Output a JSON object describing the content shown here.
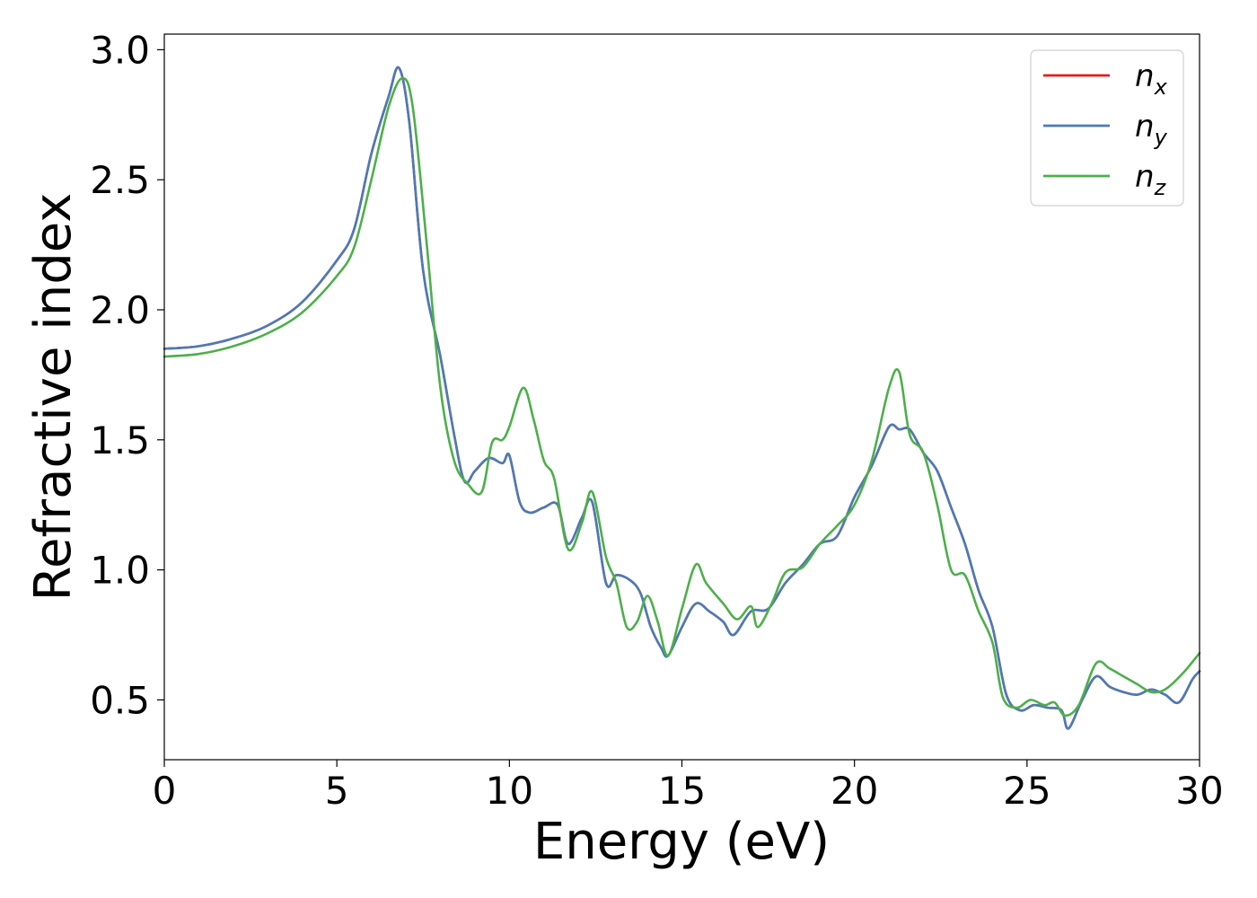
{
  "chart_data": {
    "type": "line",
    "title": "",
    "xlabel": "Energy (eV)",
    "ylabel": "Refractive index",
    "xlim": [
      0,
      30
    ],
    "ylim": [
      0.27,
      3.06
    ],
    "xticks": [
      0,
      5,
      10,
      15,
      20,
      25,
      30
    ],
    "yticks": [
      0.5,
      1.0,
      1.5,
      2.0,
      2.5,
      3.0
    ],
    "xtick_labels": [
      "0",
      "5",
      "10",
      "15",
      "20",
      "25",
      "30"
    ],
    "ytick_labels": [
      "0.5",
      "1.0",
      "1.5",
      "2.0",
      "2.5",
      "3.0"
    ],
    "grid": false,
    "legend_position": "top-right",
    "series": [
      {
        "name": "n_x",
        "label_main": "n",
        "label_sub": "x",
        "color": "#e41a1c",
        "x": [
          0,
          1,
          2,
          3,
          4,
          5,
          5.5,
          6,
          6.5,
          6.8,
          7.1,
          7.5,
          8,
          8.4,
          8.7,
          9,
          9.4,
          9.8,
          10,
          10.3,
          10.6,
          11,
          11.4,
          11.7,
          12.1,
          12.4,
          12.8,
          13.1,
          13.5,
          13.8,
          14.1,
          14.4,
          14.6,
          15,
          15.4,
          15.8,
          16.2,
          16.5,
          17,
          17.5,
          18,
          18.5,
          19,
          19.5,
          20,
          20.5,
          21,
          21.3,
          21.6,
          22,
          22.4,
          22.8,
          23.2,
          23.6,
          24,
          24.4,
          24.8,
          25.2,
          25.6,
          26,
          26.2,
          26.6,
          27,
          27.4,
          27.8,
          28.2,
          28.6,
          29,
          29.4,
          29.8,
          30
        ],
        "y": [
          1.85,
          1.86,
          1.89,
          1.94,
          2.03,
          2.19,
          2.31,
          2.6,
          2.82,
          2.93,
          2.72,
          2.15,
          1.82,
          1.52,
          1.34,
          1.38,
          1.43,
          1.41,
          1.44,
          1.26,
          1.22,
          1.24,
          1.25,
          1.1,
          1.2,
          1.26,
          0.95,
          0.98,
          0.96,
          0.91,
          0.78,
          0.7,
          0.67,
          0.78,
          0.87,
          0.84,
          0.8,
          0.75,
          0.84,
          0.85,
          0.95,
          1.02,
          1.1,
          1.13,
          1.28,
          1.4,
          1.55,
          1.54,
          1.54,
          1.45,
          1.38,
          1.24,
          1.1,
          0.92,
          0.78,
          0.52,
          0.46,
          0.48,
          0.47,
          0.46,
          0.39,
          0.5,
          0.59,
          0.55,
          0.53,
          0.52,
          0.54,
          0.52,
          0.49,
          0.58,
          0.61
        ]
      },
      {
        "name": "n_y",
        "label_main": "n",
        "label_sub": "y",
        "color": "#4a7bb7",
        "x": [
          0,
          1,
          2,
          3,
          4,
          5,
          5.5,
          6,
          6.5,
          6.8,
          7.1,
          7.5,
          8,
          8.4,
          8.7,
          9,
          9.4,
          9.8,
          10,
          10.3,
          10.6,
          11,
          11.4,
          11.7,
          12.1,
          12.4,
          12.8,
          13.1,
          13.5,
          13.8,
          14.1,
          14.4,
          14.6,
          15,
          15.4,
          15.8,
          16.2,
          16.5,
          17,
          17.5,
          18,
          18.5,
          19,
          19.5,
          20,
          20.5,
          21,
          21.3,
          21.6,
          22,
          22.4,
          22.8,
          23.2,
          23.6,
          24,
          24.4,
          24.8,
          25.2,
          25.6,
          26,
          26.2,
          26.6,
          27,
          27.4,
          27.8,
          28.2,
          28.6,
          29,
          29.4,
          29.8,
          30
        ],
        "y": [
          1.85,
          1.86,
          1.89,
          1.94,
          2.03,
          2.19,
          2.31,
          2.6,
          2.82,
          2.93,
          2.72,
          2.15,
          1.82,
          1.52,
          1.34,
          1.38,
          1.43,
          1.41,
          1.44,
          1.26,
          1.22,
          1.24,
          1.25,
          1.1,
          1.2,
          1.26,
          0.95,
          0.98,
          0.96,
          0.91,
          0.78,
          0.7,
          0.67,
          0.78,
          0.87,
          0.84,
          0.8,
          0.75,
          0.84,
          0.85,
          0.95,
          1.02,
          1.1,
          1.13,
          1.28,
          1.4,
          1.55,
          1.54,
          1.54,
          1.45,
          1.38,
          1.24,
          1.1,
          0.92,
          0.78,
          0.52,
          0.46,
          0.48,
          0.47,
          0.46,
          0.39,
          0.5,
          0.59,
          0.55,
          0.53,
          0.52,
          0.54,
          0.52,
          0.49,
          0.58,
          0.61
        ]
      },
      {
        "name": "n_z",
        "label_main": "n",
        "label_sub": "z",
        "color": "#4daf4a",
        "x": [
          0,
          1,
          2,
          3,
          4,
          5,
          5.5,
          6,
          6.5,
          6.9,
          7.2,
          7.6,
          8,
          8.4,
          8.8,
          9.2,
          9.5,
          9.8,
          10,
          10.4,
          10.7,
          11,
          11.3,
          11.7,
          12.1,
          12.4,
          12.8,
          13.1,
          13.4,
          13.7,
          14,
          14.3,
          14.6,
          15,
          15.4,
          15.7,
          16.2,
          16.6,
          17,
          17.2,
          17.6,
          18,
          18.5,
          19,
          19.5,
          20,
          20.5,
          21,
          21.3,
          21.6,
          22,
          22.4,
          22.8,
          23.2,
          23.6,
          24,
          24.3,
          24.7,
          25.1,
          25.5,
          25.8,
          26.1,
          26.5,
          27,
          27.4,
          27.8,
          28.2,
          28.6,
          29,
          29.5,
          30
        ],
        "y": [
          1.82,
          1.83,
          1.86,
          1.91,
          1.99,
          2.13,
          2.24,
          2.5,
          2.78,
          2.89,
          2.78,
          2.26,
          1.7,
          1.42,
          1.33,
          1.3,
          1.49,
          1.5,
          1.55,
          1.7,
          1.58,
          1.42,
          1.35,
          1.08,
          1.18,
          1.3,
          1.05,
          0.95,
          0.78,
          0.8,
          0.9,
          0.8,
          0.67,
          0.85,
          1.02,
          0.95,
          0.87,
          0.81,
          0.86,
          0.78,
          0.87,
          0.99,
          1.01,
          1.1,
          1.17,
          1.25,
          1.42,
          1.7,
          1.76,
          1.52,
          1.45,
          1.25,
          1.0,
          0.98,
          0.84,
          0.72,
          0.51,
          0.47,
          0.5,
          0.48,
          0.49,
          0.44,
          0.48,
          0.64,
          0.62,
          0.59,
          0.56,
          0.53,
          0.54,
          0.6,
          0.68
        ]
      }
    ]
  }
}
